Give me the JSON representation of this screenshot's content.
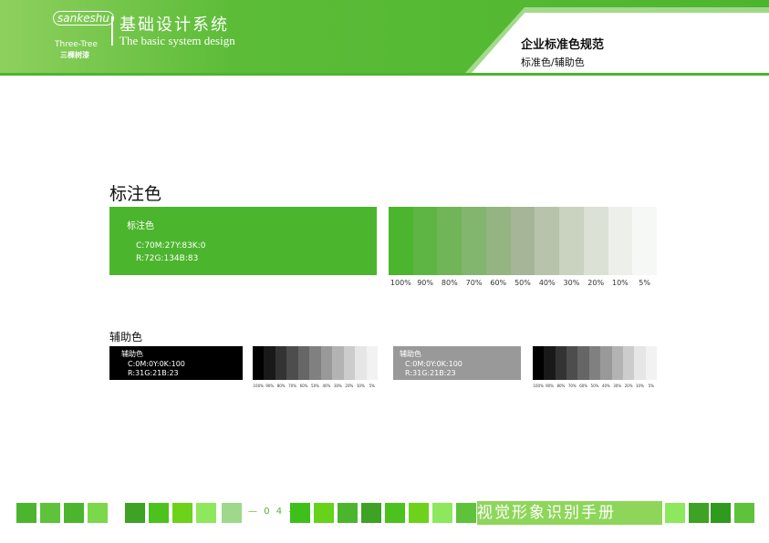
{
  "header": {
    "logo": {
      "name": "sankeshu",
      "en": "Three-Tree",
      "cn": "三棵树漆"
    },
    "title": "基础设计系统",
    "subtitle": "The basic system design",
    "section_title": "企业标准色规范",
    "section_subtitle": "标准色/辅助色"
  },
  "standard": {
    "heading": "标注色",
    "card": {
      "name": "标注色",
      "cmyk": "C:70M:27Y:83K:0",
      "rgb": "R:72G:134B:83"
    },
    "tints": [
      "100%",
      "90%",
      "80%",
      "70%",
      "60%",
      "50%",
      "40%",
      "30%",
      "20%",
      "10%",
      "5%"
    ]
  },
  "auxiliary": {
    "heading": "辅助色",
    "cards": [
      {
        "name": "辅助色",
        "cmyk": "C:0M:0Y:0K:100",
        "rgb": "R:31G:21B:23",
        "tints": [
          "100%",
          "90%",
          "80%",
          "70%",
          "60%",
          "50%",
          "40%",
          "30%",
          "20%",
          "10%",
          "5%"
        ]
      },
      {
        "name": "辅助色",
        "cmyk": "C:0M:0Y:0K:100",
        "rgb": "R:31G:21B:23",
        "tints": [
          "100%",
          "90%",
          "80%",
          "70%",
          "60%",
          "50%",
          "40%",
          "30%",
          "20%",
          "10%",
          "5%"
        ]
      }
    ]
  },
  "footer": {
    "page": "0 4",
    "title": "视觉形象识别手册"
  }
}
